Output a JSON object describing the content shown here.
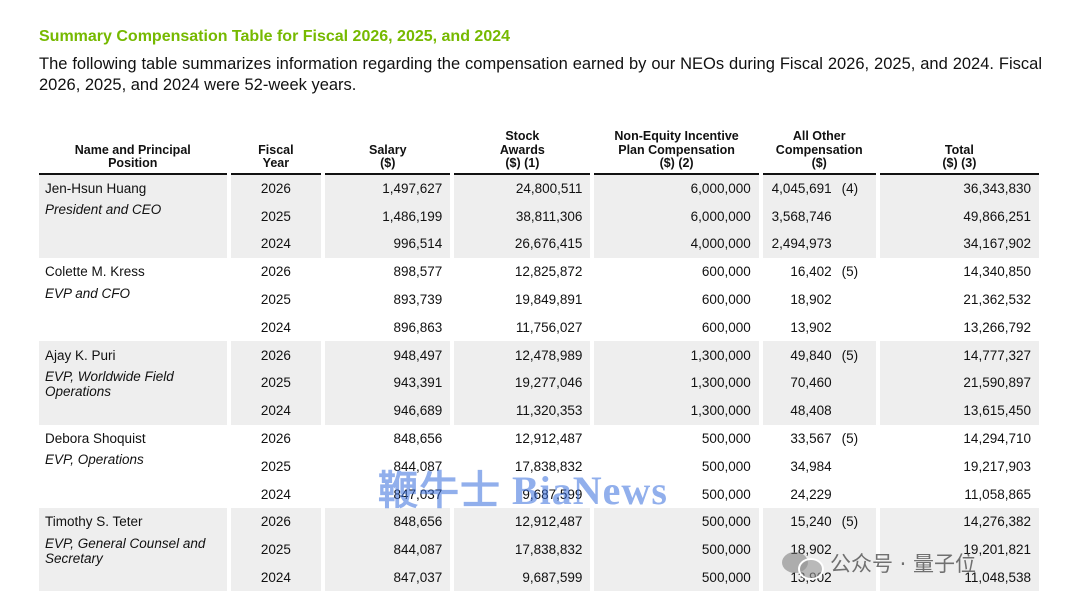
{
  "title": "Summary Compensation Table for Fiscal 2026, 2025, and 2024",
  "intro": "The following table summarizes information regarding the compensation earned by our NEOs during Fiscal 2026, 2025, and 2024.  Fiscal 2026, 2025, and 2024 were 52-week years.",
  "headers": {
    "name": [
      "Name and Principal",
      "Position"
    ],
    "year": [
      "Fiscal",
      "Year"
    ],
    "salary": [
      "Salary",
      "($)"
    ],
    "stock": [
      "Stock",
      "Awards",
      "($) (1)"
    ],
    "nonequity": [
      "Non-Equity Incentive",
      "Plan Compensation",
      "($) (2)"
    ],
    "other": [
      "All Other",
      "Compensation",
      "($)"
    ],
    "total": [
      "Total",
      "($) (3)"
    ]
  },
  "executives": [
    {
      "name": "Jen-Hsun Huang",
      "position": "President and CEO",
      "rows": [
        {
          "year": "2026",
          "salary": "1,497,627",
          "stock": "24,800,511",
          "nonequity": "6,000,000",
          "other": "4,045,691",
          "note": "(4)",
          "total": "36,343,830"
        },
        {
          "year": "2025",
          "salary": "1,486,199",
          "stock": "38,811,306",
          "nonequity": "6,000,000",
          "other": "3,568,746",
          "note": "",
          "total": "49,866,251"
        },
        {
          "year": "2024",
          "salary": "996,514",
          "stock": "26,676,415",
          "nonequity": "4,000,000",
          "other": "2,494,973",
          "note": "",
          "total": "34,167,902"
        }
      ]
    },
    {
      "name": "Colette M. Kress",
      "position": "EVP and CFO",
      "rows": [
        {
          "year": "2026",
          "salary": "898,577",
          "stock": "12,825,872",
          "nonequity": "600,000",
          "other": "16,402",
          "note": "(5)",
          "total": "14,340,850"
        },
        {
          "year": "2025",
          "salary": "893,739",
          "stock": "19,849,891",
          "nonequity": "600,000",
          "other": "18,902",
          "note": "",
          "total": "21,362,532"
        },
        {
          "year": "2024",
          "salary": "896,863",
          "stock": "11,756,027",
          "nonequity": "600,000",
          "other": "13,902",
          "note": "",
          "total": "13,266,792"
        }
      ]
    },
    {
      "name": "Ajay K. Puri",
      "position": "EVP, Worldwide Field Operations",
      "rows": [
        {
          "year": "2026",
          "salary": "948,497",
          "stock": "12,478,989",
          "nonequity": "1,300,000",
          "other": "49,840",
          "note": "(5)",
          "total": "14,777,327"
        },
        {
          "year": "2025",
          "salary": "943,391",
          "stock": "19,277,046",
          "nonequity": "1,300,000",
          "other": "70,460",
          "note": "",
          "total": "21,590,897"
        },
        {
          "year": "2024",
          "salary": "946,689",
          "stock": "11,320,353",
          "nonequity": "1,300,000",
          "other": "48,408",
          "note": "",
          "total": "13,615,450"
        }
      ]
    },
    {
      "name": "Debora Shoquist",
      "position": "EVP, Operations",
      "rows": [
        {
          "year": "2026",
          "salary": "848,656",
          "stock": "12,912,487",
          "nonequity": "500,000",
          "other": "33,567",
          "note": "(5)",
          "total": "14,294,710"
        },
        {
          "year": "2025",
          "salary": "844,087",
          "stock": "17,838,832",
          "nonequity": "500,000",
          "other": "34,984",
          "note": "",
          "total": "19,217,903"
        },
        {
          "year": "2024",
          "salary": "847,037",
          "stock": "9,687,599",
          "nonequity": "500,000",
          "other": "24,229",
          "note": "",
          "total": "11,058,865"
        }
      ]
    },
    {
      "name": "Timothy S. Teter",
      "position": "EVP, General Counsel and Secretary",
      "rows": [
        {
          "year": "2026",
          "salary": "848,656",
          "stock": "12,912,487",
          "nonequity": "500,000",
          "other": "15,240",
          "note": "(5)",
          "total": "14,276,382"
        },
        {
          "year": "2025",
          "salary": "844,087",
          "stock": "17,838,832",
          "nonequity": "500,000",
          "other": "18,902",
          "note": "",
          "total": "19,201,821"
        },
        {
          "year": "2024",
          "salary": "847,037",
          "stock": "9,687,599",
          "nonequity": "500,000",
          "other": "13,902",
          "note": "",
          "total": "11,048,538"
        }
      ]
    }
  ],
  "watermark": "鞭牛士 BiaNews",
  "wechat_label": "公众号 · 量子位"
}
